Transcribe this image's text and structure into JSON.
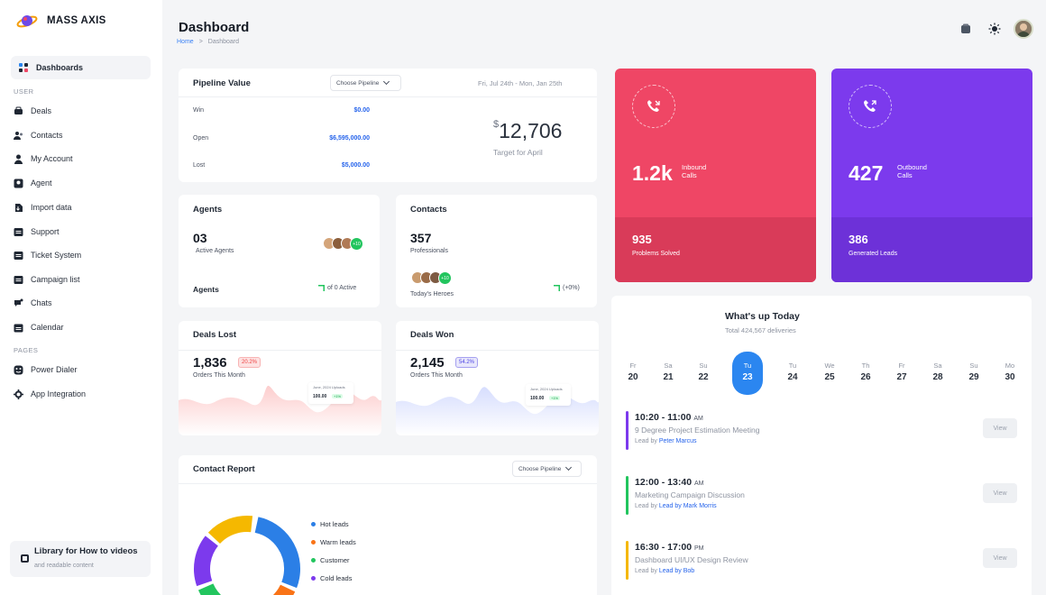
{
  "brand": {
    "name": "MASS AXIS"
  },
  "sidebar": {
    "dashboards": "Dashboards",
    "user_section": "USER",
    "pages_section": "PAGES",
    "items": [
      {
        "label": "Deals",
        "icon": "deals-icon"
      },
      {
        "label": "Contacts",
        "icon": "contacts-icon"
      },
      {
        "label": "My Account",
        "icon": "user-icon"
      },
      {
        "label": "Agent",
        "icon": "agent-icon"
      },
      {
        "label": "Import data",
        "icon": "import-icon"
      },
      {
        "label": "Support",
        "icon": "support-icon"
      },
      {
        "label": "Ticket System",
        "icon": "ticket-icon"
      },
      {
        "label": "Campaign list",
        "icon": "campaign-icon"
      },
      {
        "label": "Chats",
        "icon": "chat-icon"
      },
      {
        "label": "Calendar",
        "icon": "calendar-icon"
      }
    ],
    "pages": [
      {
        "label": "Power Dialer",
        "icon": "dialer-icon"
      },
      {
        "label": "App Integration",
        "icon": "integration-icon"
      }
    ],
    "library": {
      "title": "Library for How to videos",
      "subtitle": "and readable content"
    }
  },
  "header": {
    "title": "Dashboard",
    "breadcrumb": [
      "Home",
      ">",
      "Dashboard"
    ]
  },
  "pipeline": {
    "title": "Pipeline Value",
    "select": "Choose Pipeline",
    "date_range": "Fri, Jul 24th - Mon, Jan 25th",
    "rows": [
      {
        "label": "Win",
        "value": "$0.00"
      },
      {
        "label": "Open",
        "value": "$6,595,000.00"
      },
      {
        "label": "Lost",
        "value": "$5,000.00"
      }
    ],
    "target_currency": "$",
    "target_value": "12,706",
    "target_label": "Target for April"
  },
  "agents": {
    "title": "Agents",
    "count": "03",
    "sub": "Active Agents",
    "more": "+10",
    "footer_label": "Agents",
    "footer_value": "of 0 Active"
  },
  "contacts": {
    "title": "Contacts",
    "count": "357",
    "sub": "Professionals",
    "more": "+10",
    "footer_label": "Today's Heroes",
    "footer_value": "(+0%)"
  },
  "deals_lost": {
    "title": "Deals Lost",
    "value": "1,836",
    "badge": "20.2%",
    "sub": "Orders This Month",
    "tooltip_title": "June, 2024 Uploads",
    "tooltip_value": "100.00",
    "tooltip_badge": "+1%"
  },
  "deals_won": {
    "title": "Deals Won",
    "value": "2,145",
    "badge": "54.2%",
    "sub": "Orders This Month",
    "tooltip_title": "June, 2024 Uploads",
    "tooltip_value": "100.00",
    "tooltip_badge": "+1%"
  },
  "inbound": {
    "value": "1.2k",
    "label_1": "Inbound",
    "label_2": "Calls",
    "secondary_value": "935",
    "secondary_label": "Problems Solved",
    "color": "#ef4665"
  },
  "outbound": {
    "value": "427",
    "label_1": "Outbound",
    "label_2": "Calls",
    "secondary_value": "386",
    "secondary_label": "Generated Leads",
    "color": "#7c3aed"
  },
  "schedule": {
    "title": "What's up Today",
    "subtitle": "Total 424,567 deliveries",
    "days": [
      {
        "name": "Fr",
        "date": "20"
      },
      {
        "name": "Sa",
        "date": "21"
      },
      {
        "name": "Su",
        "date": "22"
      },
      {
        "name": "Tu",
        "date": "23"
      },
      {
        "name": "Tu",
        "date": "24"
      },
      {
        "name": "We",
        "date": "25"
      },
      {
        "name": "Th",
        "date": "26"
      },
      {
        "name": "Fr",
        "date": "27"
      },
      {
        "name": "Sa",
        "date": "28"
      },
      {
        "name": "Su",
        "date": "29"
      },
      {
        "name": "Mo",
        "date": "30"
      }
    ],
    "active_day_index": 3,
    "events": [
      {
        "time": "10:20 - 11:00",
        "ampm": "AM",
        "title": "9 Degree Project Estimation Meeting",
        "lead_prefix": "Lead by",
        "lead": "Peter Marcus",
        "color": "#7c3aed",
        "action": "View"
      },
      {
        "time": "12:00 - 13:40",
        "ampm": "AM",
        "title": "Marketing Campaign Discussion",
        "lead_prefix": "Lead by",
        "lead": "Lead by Mark Morris",
        "color": "#22c55e",
        "action": "View"
      },
      {
        "time": "16:30 - 17:00",
        "ampm": "PM",
        "title": "Dashboard UI/UX Design Review",
        "lead_prefix": "Lead by",
        "lead": "Lead by Bob",
        "color": "#f5b800",
        "action": "View"
      }
    ]
  },
  "contact_report": {
    "title": "Contact Report",
    "select": "Choose Pipeline",
    "legend": [
      {
        "label": "Hot leads",
        "color": "#2b7fe6"
      },
      {
        "label": "Warm leads",
        "color": "#f97316"
      },
      {
        "label": "Customer",
        "color": "#22c55e"
      },
      {
        "label": "Cold leads",
        "color": "#7c3aed"
      }
    ]
  }
}
